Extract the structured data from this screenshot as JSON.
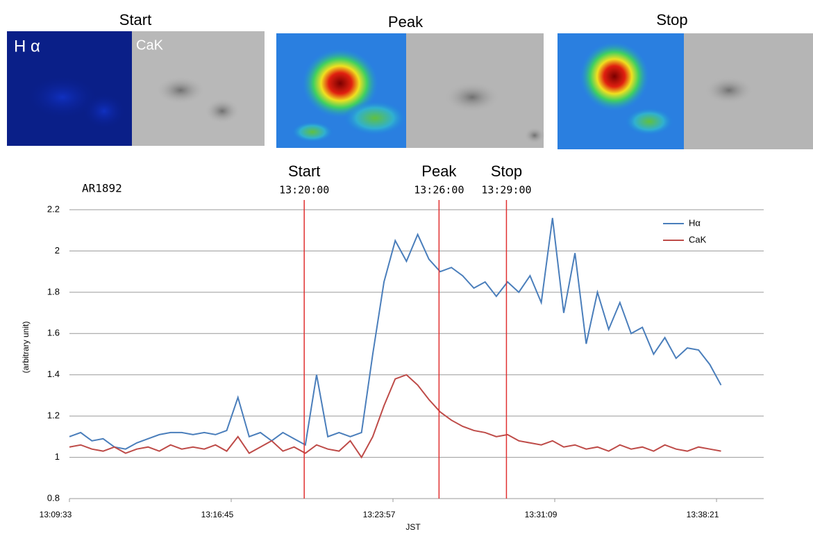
{
  "images": [
    {
      "label": "Start"
    },
    {
      "label": "Peak"
    },
    {
      "label": "Stop"
    }
  ],
  "panel_labels": {
    "halpha": "H α",
    "cak": "CaK"
  },
  "chart_data": {
    "type": "line",
    "title": "AR1892",
    "x_label": "JST",
    "y_label": "(arbitrary unit)",
    "x": [
      "13:09:33",
      "13:10:03",
      "13:10:33",
      "13:11:03",
      "13:11:33",
      "13:12:03",
      "13:12:33",
      "13:13:03",
      "13:13:33",
      "13:14:03",
      "13:14:33",
      "13:15:03",
      "13:15:33",
      "13:16:03",
      "13:16:33",
      "13:17:03",
      "13:17:33",
      "13:18:03",
      "13:18:33",
      "13:19:03",
      "13:19:33",
      "13:20:03",
      "13:20:33",
      "13:21:03",
      "13:21:33",
      "13:22:03",
      "13:22:33",
      "13:23:03",
      "13:23:33",
      "13:24:03",
      "13:24:33",
      "13:25:03",
      "13:25:33",
      "13:26:03",
      "13:26:33",
      "13:27:03",
      "13:27:33",
      "13:28:03",
      "13:28:33",
      "13:29:03",
      "13:29:33",
      "13:30:03",
      "13:30:33",
      "13:31:03",
      "13:31:33",
      "13:32:03",
      "13:32:33",
      "13:33:03",
      "13:33:33",
      "13:34:03",
      "13:34:33",
      "13:35:03",
      "13:35:33",
      "13:36:03",
      "13:36:33",
      "13:37:03",
      "13:37:33",
      "13:38:03",
      "13:38:33"
    ],
    "series": [
      {
        "name": "Hα",
        "color": "#4a7ebb",
        "values": [
          1.1,
          1.12,
          1.08,
          1.09,
          1.05,
          1.04,
          1.07,
          1.09,
          1.11,
          1.12,
          1.12,
          1.11,
          1.12,
          1.11,
          1.13,
          1.29,
          1.1,
          1.12,
          1.08,
          1.12,
          1.09,
          1.06,
          1.4,
          1.1,
          1.12,
          1.1,
          1.12,
          1.5,
          1.85,
          2.05,
          1.95,
          2.08,
          1.96,
          1.9,
          1.92,
          1.88,
          1.82,
          1.85,
          1.78,
          1.85,
          1.8,
          1.88,
          1.75,
          2.16,
          1.7,
          1.99,
          1.55,
          1.8,
          1.62,
          1.75,
          1.6,
          1.63,
          1.5,
          1.58,
          1.48,
          1.53,
          1.52,
          1.45,
          1.35
        ]
      },
      {
        "name": "CaK",
        "color": "#be4b48",
        "values": [
          1.05,
          1.06,
          1.04,
          1.03,
          1.05,
          1.02,
          1.04,
          1.05,
          1.03,
          1.06,
          1.04,
          1.05,
          1.04,
          1.06,
          1.03,
          1.1,
          1.02,
          1.05,
          1.08,
          1.03,
          1.05,
          1.02,
          1.06,
          1.04,
          1.03,
          1.08,
          1.0,
          1.1,
          1.25,
          1.38,
          1.4,
          1.35,
          1.28,
          1.22,
          1.18,
          1.15,
          1.13,
          1.12,
          1.1,
          1.11,
          1.08,
          1.07,
          1.06,
          1.08,
          1.05,
          1.06,
          1.04,
          1.05,
          1.03,
          1.06,
          1.04,
          1.05,
          1.03,
          1.06,
          1.04,
          1.03,
          1.05,
          1.04,
          1.03
        ]
      }
    ],
    "xlim": [
      "13:09:33",
      "13:40:27"
    ],
    "xticks": [
      "13:09:33",
      "13:16:45",
      "13:23:57",
      "13:31:09",
      "13:38:21"
    ],
    "ylim": [
      0.8,
      2.2
    ],
    "yticks": [
      0.8,
      1,
      1.2,
      1.4,
      1.6,
      1.8,
      2,
      2.2
    ],
    "grid": true,
    "events": [
      {
        "label": "Start",
        "time": "13:20:00",
        "color": "#e03030"
      },
      {
        "label": "Peak",
        "time": "13:26:00",
        "color": "#e03030"
      },
      {
        "label": "Stop",
        "time": "13:29:00",
        "color": "#e03030"
      }
    ],
    "legend": "upper right"
  }
}
